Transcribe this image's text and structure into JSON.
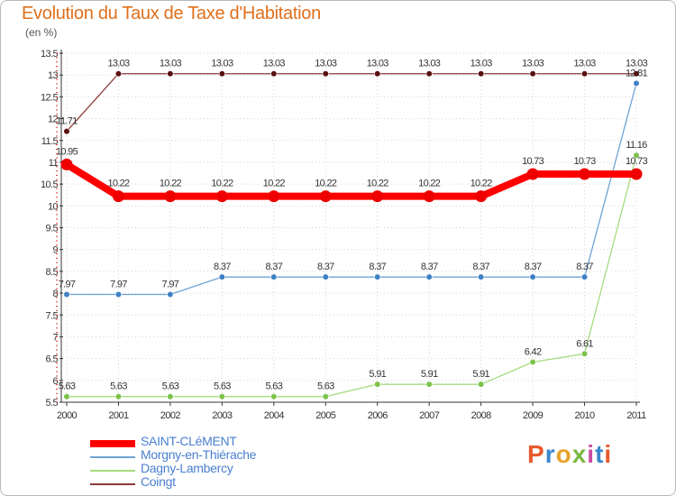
{
  "header": {
    "title": "Evolution du Taux de Taxe d'Habitation",
    "unit": "(en %)"
  },
  "brand": {
    "text": "Proxiti",
    "letter_colors": [
      "#e8592b",
      "#3a86cc",
      "#e7a22b",
      "#79b940",
      "#c94da0",
      "#3a86cc",
      "#e8592b"
    ]
  },
  "chart_data": {
    "type": "line",
    "title": "Evolution du Taux de Taxe d'Habitation",
    "ylabel": "(en %)",
    "xlabel": "",
    "ylim": [
      5.5,
      13.5
    ],
    "y_ticks": [
      5.5,
      6,
      6.5,
      7,
      7.5,
      8,
      8.5,
      9,
      9.5,
      10,
      10.5,
      11,
      11.5,
      12,
      12.5,
      13,
      13.5
    ],
    "categories": [
      "2000",
      "2001",
      "2002",
      "2003",
      "2004",
      "2005",
      "2006",
      "2007",
      "2008",
      "2009",
      "2010",
      "2011"
    ],
    "legend_position": "bottom-left",
    "series": [
      {
        "name": "Coingt",
        "color": "#8b3a3a",
        "marker": "#5a1010",
        "values": [
          11.71,
          13.03,
          13.03,
          13.03,
          13.03,
          13.03,
          13.03,
          13.03,
          13.03,
          13.03,
          13.03,
          13.03
        ],
        "labels": [
          "11.71",
          "13.03",
          "13.03",
          "13.03",
          "13.03",
          "13.03",
          "13.03",
          "13.03",
          "13.03",
          "13.03",
          "13.03",
          "13.03"
        ]
      },
      {
        "name": "Morgny-en-Thiérache",
        "color": "#6fa3d6",
        "marker": "#3e80c4",
        "values": [
          7.97,
          7.97,
          7.97,
          8.37,
          8.37,
          8.37,
          8.37,
          8.37,
          8.37,
          8.37,
          8.37,
          12.81
        ],
        "labels": [
          "7.97",
          "7.97",
          "7.97",
          "8.37",
          "8.37",
          "8.37",
          "8.37",
          "8.37",
          "8.37",
          "8.37",
          "8.37",
          "12.81"
        ]
      },
      {
        "name": "Dagny-Lambercy",
        "color": "#a6dc7e",
        "marker": "#7cc24b",
        "values": [
          5.63,
          5.63,
          5.63,
          5.63,
          5.63,
          5.63,
          5.91,
          5.91,
          5.91,
          6.42,
          6.61,
          11.16
        ],
        "labels": [
          "5.63",
          "5.63",
          "5.63",
          "5.63",
          "5.63",
          "5.63",
          "5.91",
          "5.91",
          "5.91",
          "6.42",
          "6.61",
          "11.16"
        ]
      },
      {
        "name": "SAINT-CLéMENT",
        "color": "#ff0000",
        "marker": "#ee0000",
        "values": [
          10.95,
          10.22,
          10.22,
          10.22,
          10.22,
          10.22,
          10.22,
          10.22,
          10.22,
          10.73,
          10.73,
          10.73
        ],
        "labels": [
          "10.95",
          "10.22",
          "10.22",
          "10.22",
          "10.22",
          "10.22",
          "10.22",
          "10.22",
          "10.22",
          "10.73",
          "10.73",
          "10.73"
        ]
      }
    ],
    "legend_order": [
      "SAINT-CLéMENT",
      "Morgny-en-Thiérache",
      "Dagny-Lambercy",
      "Coingt"
    ]
  }
}
